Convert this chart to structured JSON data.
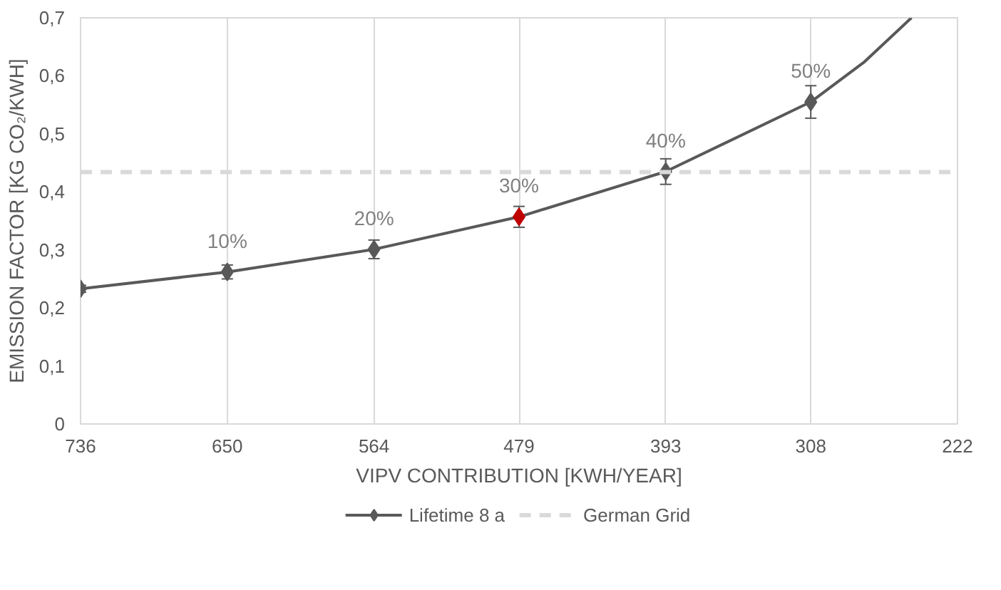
{
  "chart_data": {
    "type": "line",
    "xlabel": "VIPV CONTRIBUTION [KWH/YEAR]",
    "ylabel": "EMISSION FACTOR [KG CO₂/KWH]",
    "xlim": [
      736,
      222
    ],
    "xticks": [
      736,
      650,
      564,
      479,
      393,
      308,
      222
    ],
    "ylim": [
      0,
      0.7
    ],
    "yticks": [
      0,
      {
        "value": 0.1,
        "label": "0,1"
      },
      {
        "value": 0.2,
        "label": "0,2"
      },
      {
        "value": 0.3,
        "label": "0,3"
      },
      {
        "value": 0.4,
        "label": "0,4"
      },
      {
        "value": 0.5,
        "label": "0,5"
      },
      {
        "value": 0.6,
        "label": "0,6"
      },
      {
        "value": 0.7,
        "label": "0,7"
      }
    ],
    "grid": "x",
    "legend": "bottom",
    "line_style": "solid",
    "series": [
      {
        "name": "Lifetime 8 a",
        "marker": "diamond",
        "color": "#595959",
        "colors": [
          "#595959",
          "#595959",
          "#595959",
          "#c00000",
          "#595959",
          "#595959"
        ],
        "x": [
          736,
          650,
          564,
          479,
          393,
          308
        ],
        "values": [
          0.233,
          0.262,
          0.301,
          0.357,
          0.435,
          0.555
        ],
        "errors": [
          0.006,
          0.012,
          0.016,
          0.018,
          0.022,
          0.028
        ]
      },
      {
        "marker": "none",
        "color": "#595959",
        "x": [
          308,
          277,
          249
        ],
        "values": [
          0.555,
          0.623,
          0.7
        ]
      }
    ],
    "ref_lines": [
      {
        "axis": "y",
        "value": 0.434,
        "label": "German Grid",
        "color": "#d9d9d9",
        "line_style": "dashed"
      }
    ],
    "annotations": [
      {
        "text": "10%",
        "x": 650,
        "y": 0.262
      },
      {
        "text": "20%",
        "x": 564,
        "y": 0.301
      },
      {
        "text": "30%",
        "x": 479,
        "y": 0.357
      },
      {
        "text": "40%",
        "x": 393,
        "y": 0.435
      },
      {
        "text": "50%",
        "x": 308,
        "y": 0.555
      }
    ]
  }
}
